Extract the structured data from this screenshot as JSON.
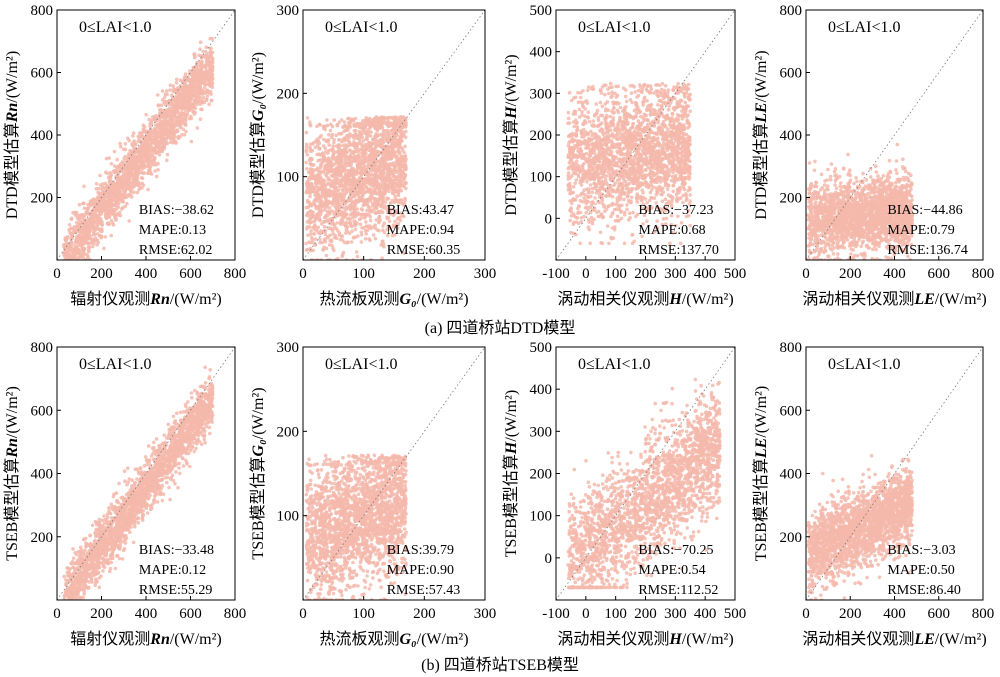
{
  "captions": [
    "(a) 四道桥站DTD模型",
    "(b) 四道桥站TSEB模型"
  ],
  "colors": {
    "points": "#f4b9ab",
    "axis": "#000000",
    "one_to_one": "#777777"
  },
  "chart_data": [
    {
      "type": "scatter",
      "model": "DTD",
      "variable": "Rn",
      "annotation": "0≤LAI<1.0",
      "ylabel_pre": "DTD模型估算",
      "ylabel_sym": "Rn",
      "ylabel_post": "/(W/m²)",
      "xlabel_pre": "辐射仪观测",
      "xlabel_sym": "Rn",
      "xlabel_post": "/(W/m²)",
      "xlim": [
        0,
        800
      ],
      "ylim": [
        0,
        800
      ],
      "xticks": [
        0,
        200,
        400,
        600,
        800
      ],
      "yticks": [
        200,
        400,
        600,
        800
      ],
      "stats": [
        "BIAS:−38.62",
        "MAPE:0.13",
        "RMSE:62.02"
      ],
      "cloud": {
        "xlo": 30,
        "xhi": 700,
        "slope": 0.93,
        "intercept": -25,
        "spread": 45
      }
    },
    {
      "type": "scatter",
      "model": "DTD",
      "variable": "G0",
      "annotation": "0≤LAI<1.0",
      "ylabel_pre": "DTD模型估算",
      "ylabel_sym": "G₀",
      "ylabel_post": "/(W/m²)",
      "xlabel_pre": "热流板观测",
      "xlabel_sym": "G₀",
      "xlabel_post": "/(W/m²)",
      "xlim": [
        0,
        300
      ],
      "ylim": [
        0,
        300
      ],
      "xticks": [
        0,
        100,
        200,
        300
      ],
      "yticks": [
        100,
        200,
        300
      ],
      "stats": [
        "BIAS:43.47",
        "MAPE:0.94",
        "RMSE:60.35"
      ],
      "cloud": {
        "xlo": 5,
        "xhi": 170,
        "slope": 0.3,
        "intercept": 75,
        "spread": 40,
        "ymin": 0,
        "ymax": 160
      }
    },
    {
      "type": "scatter",
      "model": "DTD",
      "variable": "H",
      "annotation": "0≤LAI<1.0",
      "ylabel_pre": "DTD模型估算",
      "ylabel_sym": "H",
      "ylabel_post": "/(W/m²)",
      "xlabel_pre": "涡动相关仪观测",
      "xlabel_sym": "H",
      "xlabel_post": "/(W/m²)",
      "xlim": [
        -100,
        500
      ],
      "ylim": [
        -100,
        500
      ],
      "xticks": [
        -100,
        0,
        100,
        200,
        300,
        400,
        500
      ],
      "yticks": [
        0,
        100,
        200,
        300,
        400,
        500
      ],
      "stats": [
        "BIAS:−37.23",
        "MAPE:0.68",
        "RMSE:137.70"
      ],
      "cloud": {
        "xlo": -60,
        "xhi": 350,
        "slope": 0.15,
        "intercept": 130,
        "spread": 80,
        "ymin": -60,
        "ymax": 300
      }
    },
    {
      "type": "scatter",
      "model": "DTD",
      "variable": "LE",
      "annotation": "0≤LAI<1.0",
      "ylabel_pre": "DTD模型估算",
      "ylabel_sym": "LE",
      "ylabel_post": "/(W/m²)",
      "xlabel_pre": "涡动相关仪观测",
      "xlabel_sym": "LE",
      "xlabel_post": "/(W/m²)",
      "xlim": [
        0,
        800
      ],
      "ylim": [
        0,
        800
      ],
      "xticks": [
        0,
        200,
        400,
        600,
        800
      ],
      "yticks": [
        200,
        400,
        600,
        800
      ],
      "stats": [
        "BIAS:−44.86",
        "MAPE:0.79",
        "RMSE:136.74"
      ],
      "cloud": {
        "xlo": 10,
        "xhi": 480,
        "slope": 0.05,
        "intercept": 130,
        "spread": 60,
        "ymin": 0,
        "ymax": 420
      }
    },
    {
      "type": "scatter",
      "model": "TSEB",
      "variable": "Rn",
      "annotation": "0≤LAI<1.0",
      "ylabel_pre": "TSEB模型估算",
      "ylabel_sym": "Rn",
      "ylabel_post": "/(W/m²)",
      "xlabel_pre": "辐射仪观测",
      "xlabel_sym": "Rn",
      "xlabel_post": "/(W/m²)",
      "xlim": [
        0,
        800
      ],
      "ylim": [
        0,
        800
      ],
      "xticks": [
        0,
        200,
        400,
        600,
        800
      ],
      "yticks": [
        200,
        400,
        600,
        800
      ],
      "stats": [
        "BIAS:−33.48",
        "MAPE:0.12",
        "RMSE:55.29"
      ],
      "cloud": {
        "xlo": 30,
        "xhi": 700,
        "slope": 0.94,
        "intercept": -20,
        "spread": 42
      }
    },
    {
      "type": "scatter",
      "model": "TSEB",
      "variable": "G0",
      "annotation": "0≤LAI<1.0",
      "ylabel_pre": "TSEB模型估算",
      "ylabel_sym": "G₀",
      "ylabel_post": "/(W/m²)",
      "xlabel_pre": "热流板观测",
      "xlabel_sym": "G₀",
      "xlabel_post": "/(W/m²)",
      "xlim": [
        0,
        300
      ],
      "ylim": [
        0,
        300
      ],
      "xticks": [
        0,
        100,
        200,
        300
      ],
      "yticks": [
        100,
        200,
        300
      ],
      "stats": [
        "BIAS:39.79",
        "MAPE:0.90",
        "RMSE:57.43"
      ],
      "cloud": {
        "xlo": 5,
        "xhi": 170,
        "slope": 0.3,
        "intercept": 70,
        "spread": 40,
        "ymin": 0,
        "ymax": 160
      }
    },
    {
      "type": "scatter",
      "model": "TSEB",
      "variable": "H",
      "annotation": "0≤LAI<1.0",
      "ylabel_pre": "TSEB模型估算",
      "ylabel_sym": "H",
      "ylabel_post": "/(W/m²)",
      "xlabel_pre": "涡动相关仪观测",
      "xlabel_sym": "H",
      "xlabel_post": "/(W/m²)",
      "xlim": [
        -100,
        500
      ],
      "ylim": [
        -100,
        500
      ],
      "xticks": [
        -100,
        0,
        100,
        200,
        300,
        400,
        500
      ],
      "yticks": [
        0,
        100,
        200,
        300,
        400,
        500
      ],
      "stats": [
        "BIAS:−70.25",
        "MAPE:0.54",
        "RMSE:112.52"
      ],
      "cloud": {
        "xlo": -60,
        "xhi": 450,
        "slope": 0.55,
        "intercept": 20,
        "spread": 70,
        "ymin": -70,
        "ymax": 440
      }
    },
    {
      "type": "scatter",
      "model": "TSEB",
      "variable": "LE",
      "annotation": "0≤LAI<1.0",
      "ylabel_pre": "TSEB模型估算",
      "ylabel_sym": "LE",
      "ylabel_post": "/(W/m²)",
      "xlabel_pre": "涡动相关仪观测",
      "xlabel_sym": "LE",
      "xlabel_post": "/(W/m²)",
      "xlim": [
        0,
        800
      ],
      "ylim": [
        0,
        800
      ],
      "xticks": [
        0,
        200,
        400,
        600,
        800
      ],
      "yticks": [
        200,
        400,
        600,
        800
      ],
      "stats": [
        "BIAS:−3.03",
        "MAPE:0.50",
        "RMSE:86.40"
      ],
      "cloud": {
        "xlo": 10,
        "xhi": 480,
        "slope": 0.35,
        "intercept": 140,
        "spread": 60,
        "ymin": 0,
        "ymax": 470
      }
    }
  ]
}
